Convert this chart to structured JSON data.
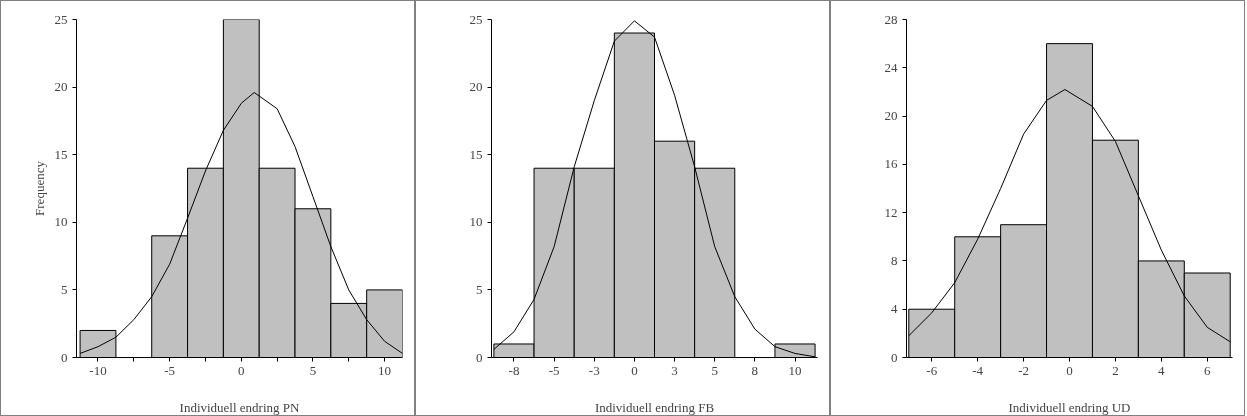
{
  "chart_data": [
    {
      "type": "histogram",
      "xlabel": "Individuell endring PN",
      "ylabel": "Frequency",
      "bins": [
        -11.25,
        -8.75,
        -6.25,
        -3.75,
        -1.25,
        1.25,
        3.75,
        6.25,
        8.75,
        11.25
      ],
      "series": [
        {
          "color": "#c0c0c0",
          "values": [
            2,
            0,
            9,
            14,
            25,
            14,
            11,
            4,
            5
          ]
        },
        {
          "type": "line",
          "color": "#000000",
          "x": [
            -11.25,
            -10,
            -8.75,
            -7.5,
            -6.25,
            -5,
            -3.75,
            -2.5,
            -1.25,
            0,
            0.9,
            2.5,
            3.75,
            5,
            6.25,
            7.5,
            8.75,
            10,
            11.25
          ],
          "values": [
            0.3,
            0.8,
            1.5,
            2.8,
            4.5,
            6.9,
            10.3,
            13.8,
            16.8,
            18.8,
            19.6,
            18.4,
            15.6,
            11.9,
            8.2,
            5,
            2.8,
            1.2,
            0.3
          ]
        }
      ],
      "xlim": [
        -11.5,
        11.25
      ],
      "ylim": [
        0,
        25
      ],
      "xticks": [
        -10,
        {
          "value": -7.5,
          "label": null
        },
        -5,
        {
          "value": -2.5,
          "label": null
        },
        0,
        {
          "value": 2.5,
          "label": null
        },
        5,
        {
          "value": 7.5,
          "label": null
        },
        10
      ],
      "yticks": [
        0,
        5,
        10,
        15,
        20,
        25
      ]
    },
    {
      "type": "histogram",
      "xlabel": "Individuell endring FB",
      "bins": [
        -8.75,
        -6.25,
        -3.75,
        -1.25,
        1.25,
        3.75,
        6.25,
        8.75,
        11.25
      ],
      "series": [
        {
          "color": "#c0c0c0",
          "values": [
            1,
            14,
            14,
            24,
            16,
            14,
            0,
            1
          ]
        },
        {
          "type": "line",
          "color": "#000000",
          "x": [
            -8.75,
            -7.5,
            -6.25,
            -5,
            -3.75,
            -2.5,
            -1.25,
            0,
            1.25,
            2.5,
            3.75,
            5,
            6.25,
            7.5,
            8.75,
            10,
            11.25
          ],
          "values": [
            0.6,
            1.9,
            4.3,
            8.2,
            14.1,
            19,
            23.4,
            24.9,
            23.7,
            19.4,
            14.1,
            8.2,
            4.5,
            2.1,
            0.8,
            0.3,
            0.05
          ]
        }
      ],
      "xlim": [
        -8.9,
        11.4
      ],
      "ylim": [
        0,
        25
      ],
      "xticks": [
        {
          "value": -7.5,
          "label": "-8"
        },
        -5,
        {
          "value": -2.5,
          "label": "-3"
        },
        0,
        {
          "value": 2.5,
          "label": "3"
        },
        5,
        {
          "value": 7.5,
          "label": "8"
        },
        10
      ],
      "yticks": [
        0,
        5,
        10,
        15,
        20,
        25
      ]
    },
    {
      "type": "histogram",
      "xlabel": "Individuell endring UD",
      "bins": [
        -7,
        -5,
        -3,
        -1,
        1,
        3,
        5,
        7
      ],
      "series": [
        {
          "color": "#c0c0c0",
          "values": [
            4,
            10,
            11,
            26,
            18,
            8,
            7
          ]
        },
        {
          "type": "line",
          "color": "#000000",
          "x": [
            -7,
            -6,
            -5,
            -4,
            -3,
            -2,
            -1,
            -0.2,
            1,
            2,
            3,
            4,
            5,
            6,
            7
          ],
          "values": [
            1.8,
            3.7,
            6.2,
            9.8,
            14,
            18.5,
            21.3,
            22.2,
            20.8,
            17.9,
            13.4,
            8.9,
            5.1,
            2.5,
            1.3
          ]
        }
      ],
      "xlim": [
        -7.1,
        7.1
      ],
      "ylim": [
        0,
        28
      ],
      "xticks": [
        -6,
        -4,
        -2,
        0,
        2,
        4,
        6
      ],
      "yticks": [
        0,
        4,
        8,
        12,
        16,
        20,
        24,
        28
      ]
    }
  ]
}
